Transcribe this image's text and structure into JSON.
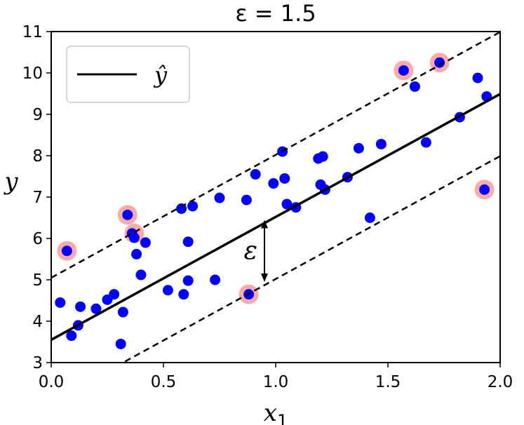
{
  "chart_data": {
    "type": "scatter",
    "title": "ε = 1.5",
    "xlabel": "x",
    "xlabel_sub": "1",
    "ylabel": "y",
    "xlim": [
      0,
      2
    ],
    "ylim": [
      3,
      11
    ],
    "xticks": [
      "0.0",
      "0.5",
      "1.0",
      "1.5",
      "2.0"
    ],
    "yticks": [
      "3",
      "4",
      "5",
      "6",
      "7",
      "8",
      "9",
      "10",
      "11"
    ],
    "grid": false,
    "legend": {
      "placement": "top-left",
      "entries": [
        {
          "label": "ŷ",
          "style": "solid-line"
        }
      ]
    },
    "epsilon": 1.5,
    "regression_line": {
      "intercept": 3.55,
      "slope": 2.97
    },
    "annotation": {
      "text": "ε",
      "x": 0.95,
      "y_from": 4.95,
      "y_to": 6.45
    },
    "points": [
      [
        0.04,
        4.45
      ],
      [
        0.07,
        5.7
      ],
      [
        0.09,
        3.65
      ],
      [
        0.12,
        3.9
      ],
      [
        0.13,
        4.35
      ],
      [
        0.2,
        4.3
      ],
      [
        0.25,
        4.52
      ],
      [
        0.28,
        4.65
      ],
      [
        0.31,
        3.45
      ],
      [
        0.32,
        4.22
      ],
      [
        0.34,
        6.57
      ],
      [
        0.36,
        6.12
      ],
      [
        0.37,
        6.02
      ],
      [
        0.38,
        5.62
      ],
      [
        0.4,
        5.12
      ],
      [
        0.42,
        5.9
      ],
      [
        0.52,
        4.75
      ],
      [
        0.58,
        6.72
      ],
      [
        0.59,
        4.65
      ],
      [
        0.61,
        5.92
      ],
      [
        0.61,
        4.98
      ],
      [
        0.63,
        6.78
      ],
      [
        0.73,
        5.0
      ],
      [
        0.75,
        6.98
      ],
      [
        0.87,
        6.93
      ],
      [
        0.88,
        4.65
      ],
      [
        0.91,
        7.55
      ],
      [
        0.99,
        7.33
      ],
      [
        1.03,
        8.1
      ],
      [
        1.04,
        7.45
      ],
      [
        1.05,
        6.83
      ],
      [
        1.09,
        6.75
      ],
      [
        1.19,
        7.93
      ],
      [
        1.2,
        7.3
      ],
      [
        1.21,
        7.98
      ],
      [
        1.22,
        7.18
      ],
      [
        1.32,
        7.48
      ],
      [
        1.37,
        8.18
      ],
      [
        1.42,
        6.5
      ],
      [
        1.47,
        8.28
      ],
      [
        1.57,
        10.06
      ],
      [
        1.62,
        9.67
      ],
      [
        1.67,
        8.32
      ],
      [
        1.73,
        10.25
      ],
      [
        1.82,
        8.93
      ],
      [
        1.9,
        9.88
      ],
      [
        1.93,
        7.18
      ],
      [
        1.94,
        9.43
      ]
    ],
    "support_vectors": [
      [
        0.07,
        5.7
      ],
      [
        0.34,
        6.57
      ],
      [
        0.37,
        6.12
      ],
      [
        0.88,
        4.65
      ],
      [
        1.57,
        10.06
      ],
      [
        1.73,
        10.25
      ],
      [
        1.93,
        7.18
      ]
    ],
    "colors": {
      "points": "#0000ff",
      "support_vectors": "#ffaaaa",
      "lines": "#000000"
    }
  }
}
